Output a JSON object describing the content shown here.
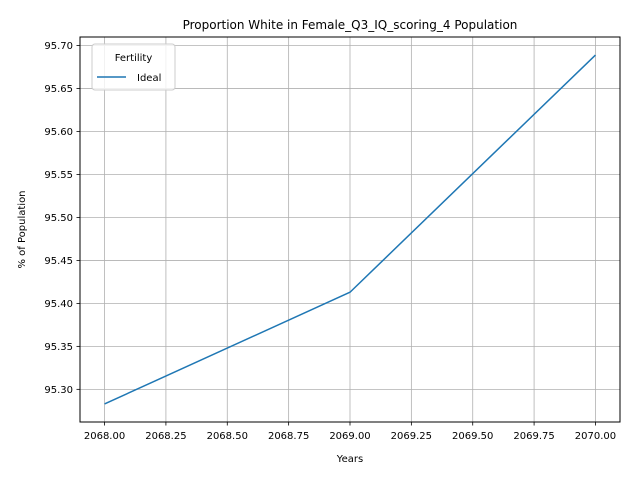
{
  "chart_data": {
    "type": "line",
    "title": "Proportion White in Female_Q3_IQ_scoring_4 Population",
    "xlabel": "Years",
    "ylabel": "% of Population",
    "xlim": [
      2067.9,
      2070.1
    ],
    "ylim": [
      95.262,
      95.71
    ],
    "xticks": [
      2068.0,
      2068.25,
      2068.5,
      2068.75,
      2069.0,
      2069.25,
      2069.5,
      2069.75,
      2070.0
    ],
    "xtick_labels": [
      "2068.00",
      "2068.25",
      "2068.50",
      "2068.75",
      "2069.00",
      "2069.25",
      "2069.50",
      "2069.75",
      "2070.00"
    ],
    "yticks": [
      95.3,
      95.35,
      95.4,
      95.45,
      95.5,
      95.55,
      95.6,
      95.65,
      95.7
    ],
    "ytick_labels": [
      "95.30",
      "95.35",
      "95.40",
      "95.45",
      "95.50",
      "95.55",
      "95.60",
      "95.65",
      "95.70"
    ],
    "grid": true,
    "legend": {
      "title": "Fertility",
      "position": "top-left"
    },
    "series": [
      {
        "name": "Ideal",
        "color": "#1f77b4",
        "x": [
          2068,
          2069,
          2070
        ],
        "y": [
          95.283,
          95.413,
          95.689
        ]
      }
    ]
  }
}
